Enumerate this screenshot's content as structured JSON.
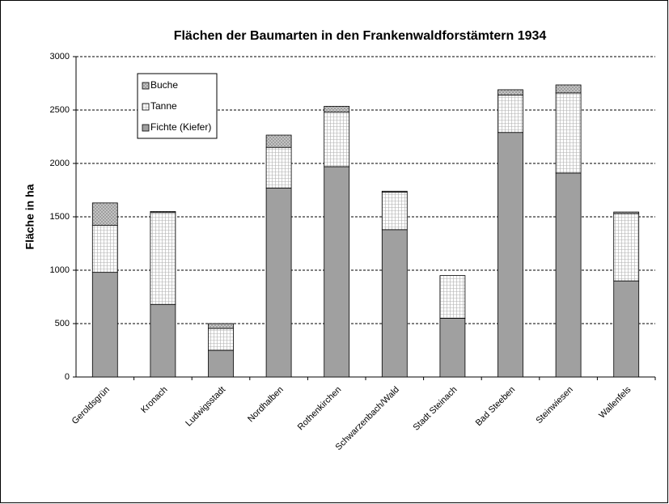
{
  "chart_data": {
    "type": "stacked_bar",
    "title": "Flächen der Baumarten in den  Frankenwaldforstämtern 1934",
    "ylabel": "Fläche in ha",
    "categories": [
      "Geroldsgrün",
      "Kronach",
      "Ludwigsstadt",
      "Nordhalben",
      "Rothenkirchen",
      "Schwarzenbach/Wald",
      "Stadt Steinach",
      "Bad Steeben",
      "Steinwiesen",
      "Wallenfels"
    ],
    "series": [
      {
        "name": "Fichte (Kiefer)",
        "color": "#a0a0a0",
        "values": [
          980,
          680,
          250,
          1770,
          1970,
          1380,
          550,
          2290,
          1910,
          900
        ]
      },
      {
        "name": "Tanne",
        "color": "#ffffff",
        "values": [
          440,
          860,
          205,
          380,
          510,
          350,
          400,
          350,
          750,
          630
        ]
      },
      {
        "name": "Buche",
        "color": "#c8c8c8",
        "values": [
          210,
          10,
          45,
          115,
          55,
          10,
          0,
          50,
          75,
          15
        ]
      }
    ],
    "ylim": [
      0,
      3000
    ],
    "yticks": [
      0,
      500,
      1000,
      1500,
      2000,
      2500,
      3000
    ],
    "grid": true,
    "legend": "top-left"
  }
}
